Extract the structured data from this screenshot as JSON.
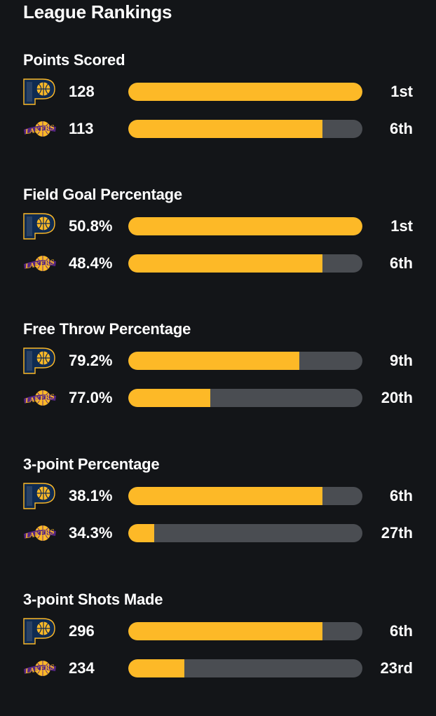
{
  "page": {
    "title": "League Rankings"
  },
  "colors": {
    "background": "#131518",
    "bar_fill": "#fdb927",
    "bar_track": "#4a4d52",
    "text": "#ffffff"
  },
  "teams": [
    {
      "key": "pacers",
      "icon": "pacers-logo-icon"
    },
    {
      "key": "lakers",
      "icon": "lakers-logo-icon",
      "logo_text": "LAKERS"
    }
  ],
  "chart_data": {
    "type": "bar",
    "title": "League Rankings",
    "categories": [
      "Points Scored",
      "Field Goal Percentage",
      "Free Throw Percentage",
      "3-point Percentage",
      "3-point Shots Made"
    ],
    "sections": [
      {
        "title": "Points Scored",
        "rows": [
          {
            "team": "pacers",
            "value": "128",
            "rank": "1st",
            "fill": 1.0
          },
          {
            "team": "lakers",
            "value": "113",
            "rank": "6th",
            "fill": 0.83
          }
        ]
      },
      {
        "title": "Field Goal Percentage",
        "rows": [
          {
            "team": "pacers",
            "value": "50.8%",
            "rank": "1st",
            "fill": 1.0
          },
          {
            "team": "lakers",
            "value": "48.4%",
            "rank": "6th",
            "fill": 0.83
          }
        ]
      },
      {
        "title": "Free Throw Percentage",
        "rows": [
          {
            "team": "pacers",
            "value": "79.2%",
            "rank": "9th",
            "fill": 0.73
          },
          {
            "team": "lakers",
            "value": "77.0%",
            "rank": "20th",
            "fill": 0.35
          }
        ]
      },
      {
        "title": "3-point Percentage",
        "rows": [
          {
            "team": "pacers",
            "value": "38.1%",
            "rank": "6th",
            "fill": 0.83
          },
          {
            "team": "lakers",
            "value": "34.3%",
            "rank": "27th",
            "fill": 0.11
          }
        ]
      },
      {
        "title": "3-point Shots Made",
        "rows": [
          {
            "team": "pacers",
            "value": "296",
            "rank": "6th",
            "fill": 0.83
          },
          {
            "team": "lakers",
            "value": "234",
            "rank": "23rd",
            "fill": 0.24
          }
        ]
      }
    ]
  }
}
